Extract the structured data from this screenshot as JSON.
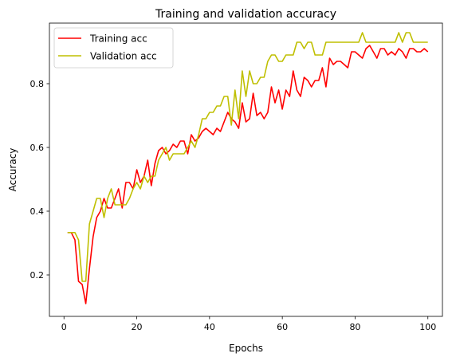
{
  "chart_data": {
    "type": "line",
    "title": "Training and validation accuracy",
    "xlabel": "Epochs",
    "ylabel": "Accuracy",
    "xlim": [
      -4,
      104
    ],
    "ylim": [
      0.07,
      0.99
    ],
    "xticks": [
      0,
      20,
      40,
      60,
      80,
      100
    ],
    "yticks": [
      0.2,
      0.4,
      0.6,
      0.8
    ],
    "grid": false,
    "legend_position": "upper-left",
    "series": [
      {
        "name": "Training acc",
        "color": "#ff0000",
        "x": [
          1,
          2,
          3,
          4,
          5,
          6,
          7,
          8,
          9,
          10,
          11,
          12,
          13,
          14,
          15,
          16,
          17,
          18,
          19,
          20,
          21,
          22,
          23,
          24,
          25,
          26,
          27,
          28,
          29,
          30,
          31,
          32,
          33,
          34,
          35,
          36,
          37,
          38,
          39,
          40,
          41,
          42,
          43,
          44,
          45,
          46,
          47,
          48,
          49,
          50,
          51,
          52,
          53,
          54,
          55,
          56,
          57,
          58,
          59,
          60,
          61,
          62,
          63,
          64,
          65,
          66,
          67,
          68,
          69,
          70,
          71,
          72,
          73,
          74,
          75,
          76,
          77,
          78,
          79,
          80,
          81,
          82,
          83,
          84,
          85,
          86,
          87,
          88,
          89,
          90,
          91,
          92,
          93,
          94,
          95,
          96,
          97,
          98,
          99,
          100
        ],
        "values": [
          0.333,
          0.333,
          0.31,
          0.18,
          0.17,
          0.11,
          0.22,
          0.32,
          0.38,
          0.4,
          0.44,
          0.41,
          0.41,
          0.44,
          0.47,
          0.41,
          0.49,
          0.49,
          0.47,
          0.53,
          0.49,
          0.51,
          0.56,
          0.48,
          0.55,
          0.59,
          0.6,
          0.58,
          0.59,
          0.61,
          0.6,
          0.62,
          0.62,
          0.58,
          0.64,
          0.62,
          0.63,
          0.65,
          0.66,
          0.65,
          0.64,
          0.66,
          0.65,
          0.68,
          0.71,
          0.69,
          0.68,
          0.66,
          0.74,
          0.68,
          0.69,
          0.77,
          0.7,
          0.71,
          0.69,
          0.71,
          0.79,
          0.74,
          0.78,
          0.72,
          0.78,
          0.76,
          0.84,
          0.78,
          0.76,
          0.82,
          0.81,
          0.79,
          0.81,
          0.81,
          0.85,
          0.79,
          0.88,
          0.86,
          0.87,
          0.87,
          0.86,
          0.85,
          0.9,
          0.9,
          0.89,
          0.88,
          0.91,
          0.92,
          0.9,
          0.88,
          0.91,
          0.91,
          0.89,
          0.9,
          0.89,
          0.91,
          0.9,
          0.88,
          0.91,
          0.91,
          0.9,
          0.9,
          0.91,
          0.9
        ]
      },
      {
        "name": "Validation acc",
        "color": "#bfbf00",
        "x": [
          1,
          2,
          3,
          4,
          5,
          6,
          7,
          8,
          9,
          10,
          11,
          12,
          13,
          14,
          15,
          16,
          17,
          18,
          19,
          20,
          21,
          22,
          23,
          24,
          25,
          26,
          27,
          28,
          29,
          30,
          31,
          32,
          33,
          34,
          35,
          36,
          37,
          38,
          39,
          40,
          41,
          42,
          43,
          44,
          45,
          46,
          47,
          48,
          49,
          50,
          51,
          52,
          53,
          54,
          55,
          56,
          57,
          58,
          59,
          60,
          61,
          62,
          63,
          64,
          65,
          66,
          67,
          68,
          69,
          70,
          71,
          72,
          73,
          74,
          75,
          76,
          77,
          78,
          79,
          80,
          81,
          82,
          83,
          84,
          85,
          86,
          87,
          88,
          89,
          90,
          91,
          92,
          93,
          94,
          95,
          96,
          97,
          98,
          99,
          100
        ],
        "values": [
          0.333,
          0.333,
          0.333,
          0.31,
          0.18,
          0.18,
          0.36,
          0.4,
          0.44,
          0.44,
          0.38,
          0.44,
          0.47,
          0.42,
          0.42,
          0.42,
          0.42,
          0.44,
          0.47,
          0.49,
          0.47,
          0.51,
          0.49,
          0.51,
          0.51,
          0.56,
          0.58,
          0.6,
          0.56,
          0.58,
          0.58,
          0.58,
          0.58,
          0.6,
          0.62,
          0.6,
          0.64,
          0.69,
          0.69,
          0.71,
          0.71,
          0.73,
          0.73,
          0.76,
          0.76,
          0.67,
          0.78,
          0.69,
          0.84,
          0.76,
          0.84,
          0.8,
          0.8,
          0.82,
          0.82,
          0.87,
          0.89,
          0.89,
          0.87,
          0.87,
          0.89,
          0.89,
          0.89,
          0.93,
          0.93,
          0.91,
          0.93,
          0.93,
          0.89,
          0.89,
          0.89,
          0.93,
          0.93,
          0.93,
          0.93,
          0.93,
          0.93,
          0.93,
          0.93,
          0.93,
          0.93,
          0.96,
          0.93,
          0.93,
          0.93,
          0.93,
          0.93,
          0.93,
          0.93,
          0.93,
          0.93,
          0.96,
          0.93,
          0.96,
          0.96,
          0.93,
          0.93,
          0.93,
          0.93,
          0.93
        ]
      }
    ]
  }
}
